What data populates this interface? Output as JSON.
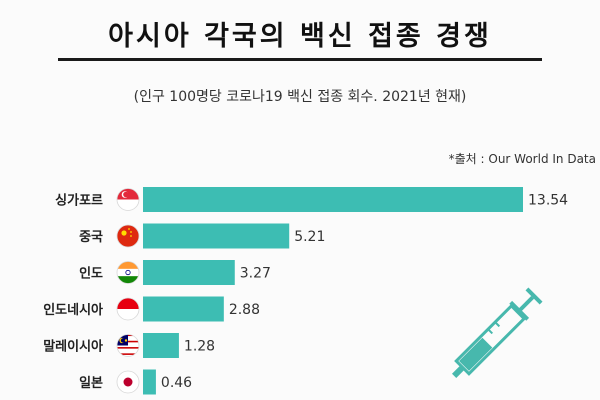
{
  "title": "아시아 각국의 백신 접종 경쟁",
  "subtitle": "(인구 100명당 코로나19 백신 접종 회수. 2021년 현재)",
  "source": "*출처 :  Our World In Data",
  "colors": {
    "bar": "#3dbdb3",
    "syringe": "#47b8ad"
  },
  "chart_data": {
    "type": "bar",
    "orientation": "horizontal",
    "categories": [
      "싱가포르",
      "중국",
      "인도",
      "인도네시아",
      "말레이시아",
      "일본"
    ],
    "values": [
      13.54,
      5.21,
      3.27,
      2.88,
      1.28,
      0.46
    ],
    "value_labels": [
      "13.54",
      "5.21",
      "3.27",
      "2.88",
      "1.28",
      "0.46"
    ],
    "flags": [
      "singapore-flag-icon",
      "china-flag-icon",
      "india-flag-icon",
      "indonesia-flag-icon",
      "malaysia-flag-icon",
      "japan-flag-icon"
    ],
    "xlim": [
      0,
      13.54
    ],
    "grid": false,
    "legend": "none"
  }
}
